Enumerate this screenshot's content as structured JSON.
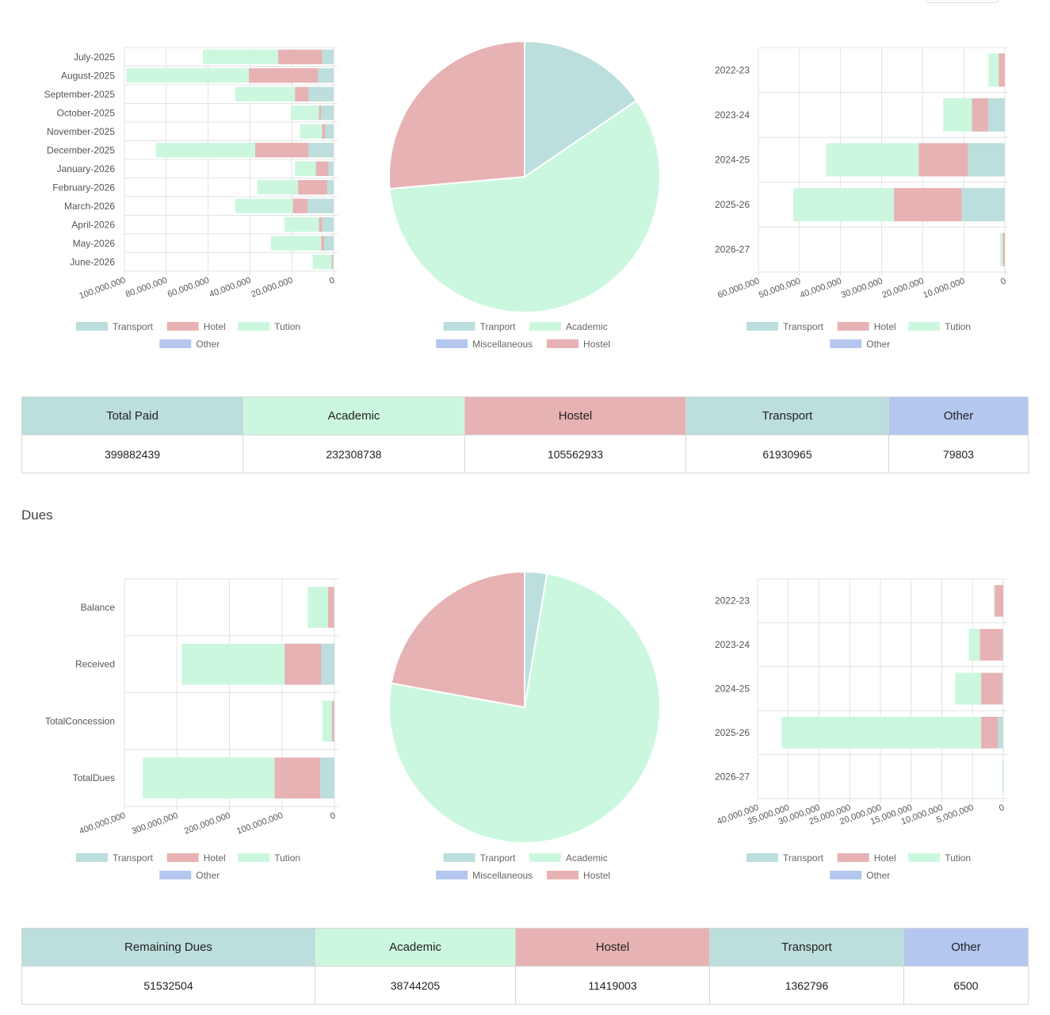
{
  "colors": {
    "transport": "#bcdedc",
    "hotel": "#e7b2b3",
    "tution": "#ccf7df",
    "other": "#b4c7ef"
  },
  "paid_section": {
    "monthly_chart": {
      "type": "bar",
      "orientation": "horizontal",
      "stacked": true,
      "x_reversed": true,
      "categories": [
        "July-2025",
        "August-2025",
        "September-2025",
        "October-2025",
        "November-2025",
        "December-2025",
        "January-2026",
        "February-2026",
        "March-2026",
        "April-2026",
        "May-2026",
        "June-2026"
      ],
      "series": [
        {
          "name": "Transport",
          "color": "#bcdedc",
          "values": [
            5500000,
            7500000,
            12000000,
            6000000,
            4000000,
            12000000,
            2500000,
            3000000,
            12500000,
            5500000,
            4500000,
            500000
          ]
        },
        {
          "name": "Hotel",
          "color": "#e7b2b3",
          "values": [
            21000000,
            33000000,
            6500000,
            1000000,
            1500000,
            25500000,
            6000000,
            14000000,
            7000000,
            1500000,
            1500000,
            500000
          ]
        },
        {
          "name": "Tution",
          "color": "#ccf7df",
          "values": [
            36000000,
            58500000,
            28500000,
            13500000,
            10500000,
            47500000,
            10000000,
            19500000,
            27500000,
            16500000,
            24000000,
            9000000
          ]
        },
        {
          "name": "Other",
          "color": "#b4c7ef",
          "values": [
            0,
            0,
            0,
            0,
            0,
            0,
            0,
            0,
            0,
            0,
            0,
            0
          ]
        }
      ],
      "x_ticks": [
        "100,000,000",
        "80,000,000",
        "60,000,000",
        "40,000,000",
        "20,000,000",
        "0"
      ],
      "xlim": [
        0,
        100000000
      ],
      "legend": [
        "Transport",
        "Hotel",
        "Tution",
        "Other"
      ]
    },
    "pie_chart": {
      "type": "pie",
      "slices": [
        {
          "name": "Tranport",
          "color": "#bcdedc",
          "value": 61930965
        },
        {
          "name": "Academic",
          "color": "#ccf7df",
          "value": 232308738
        },
        {
          "name": "Miscellaneous",
          "color": "#b4c7ef",
          "value": 0
        },
        {
          "name": "Hostel",
          "color": "#e7b2b3",
          "value": 105562933
        }
      ],
      "legend": [
        "Tranport",
        "Academic",
        "Miscellaneous",
        "Hostel"
      ]
    },
    "yearly_chart": {
      "type": "bar",
      "orientation": "horizontal",
      "stacked": true,
      "x_reversed": true,
      "categories": [
        "2022-23",
        "2023-24",
        "2024-25",
        "2025-26",
        "2026-27"
      ],
      "series": [
        {
          "name": "Transport",
          "color": "#bcdedc",
          "values": [
            0,
            4000000,
            9000000,
            10500000,
            0
          ]
        },
        {
          "name": "Hotel",
          "color": "#e7b2b3",
          "values": [
            1500000,
            4000000,
            12000000,
            16500000,
            500000
          ]
        },
        {
          "name": "Tution",
          "color": "#ccf7df",
          "values": [
            2500000,
            7000000,
            22500000,
            24500000,
            700000
          ]
        },
        {
          "name": "Other",
          "color": "#b4c7ef",
          "values": [
            0,
            0,
            0,
            0,
            0
          ]
        }
      ],
      "x_ticks": [
        "60,000,000",
        "50,000,000",
        "40,000,000",
        "30,000,000",
        "20,000,000",
        "10,000,000",
        "0"
      ],
      "xlim": [
        0,
        60000000
      ],
      "legend": [
        "Transport",
        "Hotel",
        "Tution",
        "Other"
      ]
    },
    "summary": {
      "headers": [
        "Total Paid",
        "Academic",
        "Hostel",
        "Transport",
        "Other"
      ],
      "values": [
        "399882439",
        "232308738",
        "105562933",
        "61930965",
        "79803"
      ]
    }
  },
  "dues_title": "Dues",
  "dues_section": {
    "category_chart": {
      "type": "bar",
      "orientation": "horizontal",
      "stacked": true,
      "x_reversed": true,
      "categories": [
        "Balance",
        "Received",
        "TotalConcession",
        "TotalDues"
      ],
      "series": [
        {
          "name": "Transport",
          "color": "#bcdedc",
          "values": [
            1000000,
            25000000,
            1000000,
            27000000
          ]
        },
        {
          "name": "Hotel",
          "color": "#e7b2b3",
          "values": [
            11000000,
            70000000,
            4000000,
            87000000
          ]
        },
        {
          "name": "Tution",
          "color": "#ccf7df",
          "values": [
            39000000,
            196000000,
            18000000,
            251000000
          ]
        },
        {
          "name": "Other",
          "color": "#b4c7ef",
          "values": [
            0,
            0,
            0,
            0
          ]
        }
      ],
      "x_ticks": [
        "400,000,000",
        "300,000,000",
        "200,000,000",
        "100,000,000",
        "0"
      ],
      "xlim": [
        0,
        400000000
      ],
      "legend": [
        "Transport",
        "Hotel",
        "Tution",
        "Other"
      ]
    },
    "pie_chart": {
      "type": "pie",
      "slices": [
        {
          "name": "Tranport",
          "color": "#bcdedc",
          "value": 1362796
        },
        {
          "name": "Academic",
          "color": "#ccf7df",
          "value": 38744205
        },
        {
          "name": "Miscellaneous",
          "color": "#b4c7ef",
          "value": 0
        },
        {
          "name": "Hostel",
          "color": "#e7b2b3",
          "value": 11419003
        }
      ],
      "legend": [
        "Tranport",
        "Academic",
        "Miscellaneous",
        "Hostel"
      ]
    },
    "yearly_chart": {
      "type": "bar",
      "orientation": "horizontal",
      "stacked": true,
      "x_reversed": true,
      "categories": [
        "2022-23",
        "2023-24",
        "2024-25",
        "2025-26",
        "2026-27"
      ],
      "series": [
        {
          "name": "Transport",
          "color": "#bcdedc",
          "values": [
            0,
            100000,
            200000,
            900000,
            100000
          ]
        },
        {
          "name": "Hotel",
          "color": "#e7b2b3",
          "values": [
            1400000,
            3700000,
            3400000,
            2700000,
            0
          ]
        },
        {
          "name": "Tution",
          "color": "#ccf7df",
          "values": [
            200000,
            1800000,
            4200000,
            32500000,
            100000
          ]
        },
        {
          "name": "Other",
          "color": "#b4c7ef",
          "values": [
            0,
            0,
            0,
            0,
            0
          ]
        }
      ],
      "x_ticks": [
        "40,000,000",
        "35,000,000",
        "30,000,000",
        "25,000,000",
        "20,000,000",
        "15,000,000",
        "10,000,000",
        "5,000,000",
        "0"
      ],
      "xlim": [
        0,
        40000000
      ],
      "legend": [
        "Transport",
        "Hotel",
        "Tution",
        "Other"
      ]
    },
    "summary": {
      "headers": [
        "Remaining Dues",
        "Academic",
        "Hostel",
        "Transport",
        "Other"
      ],
      "values": [
        "51532504",
        "38744205",
        "11419003",
        "1362796",
        "6500"
      ]
    }
  }
}
